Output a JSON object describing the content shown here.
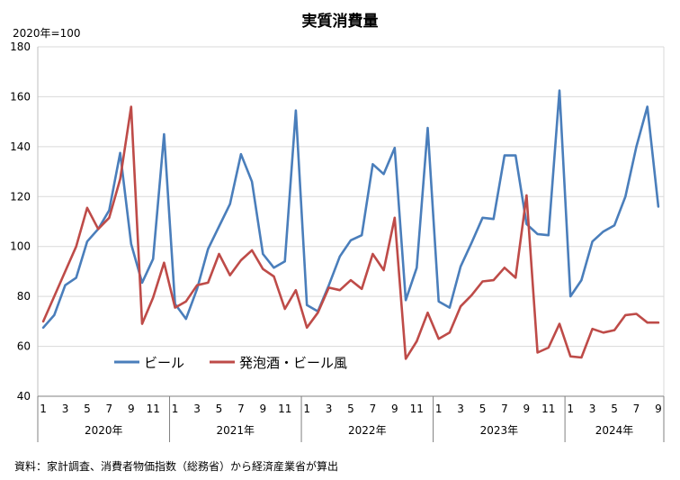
{
  "chart_data": {
    "type": "line",
    "title": "実質消費量",
    "yunit": "2020年=100",
    "ylim": [
      40,
      180
    ],
    "yticks": [
      40,
      60,
      80,
      100,
      120,
      140,
      160,
      180
    ],
    "grid": true,
    "legend_position": "bottom-left (inside plot)",
    "month_tick_labels": [
      "1",
      "3",
      "5",
      "7",
      "9",
      "11"
    ],
    "years": [
      {
        "label": "2020年",
        "months": 12
      },
      {
        "label": "2021年",
        "months": 12
      },
      {
        "label": "2022年",
        "months": 12
      },
      {
        "label": "2023年",
        "months": 12
      },
      {
        "label": "2024年",
        "months": 9
      }
    ],
    "series": [
      {
        "name": "ビール",
        "color": "#4a7ebb",
        "values": [
          67.5,
          72.5,
          84.5,
          87.5,
          102,
          107,
          114.5,
          137.5,
          101,
          85.5,
          95,
          145,
          77,
          71,
          83,
          99,
          108,
          117,
          137,
          126,
          97,
          91.5,
          94,
          154.5,
          76.5,
          74,
          84.5,
          96,
          102.5,
          104.5,
          133,
          129,
          139.5,
          78.5,
          91.5,
          147.5,
          78,
          75.5,
          92,
          101.5,
          111.5,
          111,
          136.5,
          136.5,
          109,
          105,
          104.5,
          162.5,
          80,
          86.5,
          102,
          106,
          108.5,
          120,
          140,
          156,
          116
        ]
      },
      {
        "name": "発泡酒・ビール風",
        "color": "#be4b48",
        "values": [
          70,
          80,
          90,
          100,
          115.5,
          107,
          111.5,
          127,
          156,
          69,
          79.5,
          93.5,
          75.5,
          78,
          84.5,
          85.5,
          97,
          88.5,
          94.5,
          98.5,
          91,
          88,
          75,
          82.5,
          67.5,
          73.5,
          83.5,
          82.5,
          86.5,
          83,
          97,
          90.5,
          111.5,
          55,
          62,
          73.5,
          63,
          65.5,
          76,
          80.5,
          86,
          86.5,
          91.5,
          87.5,
          120.5,
          57.5,
          59.5,
          69,
          56,
          55.5,
          67,
          65.5,
          66.5,
          72.5,
          73,
          69.5,
          69.5
        ]
      }
    ],
    "source": "資料：家計調査、消費者物価指数（総務省）から経済産業省が算出"
  }
}
